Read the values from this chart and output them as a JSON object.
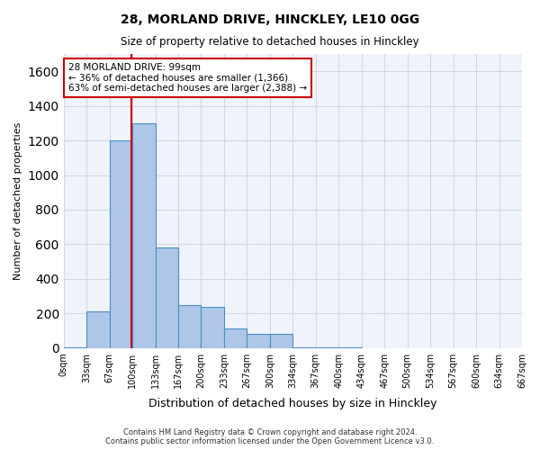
{
  "title1": "28, MORLAND DRIVE, HINCKLEY, LE10 0GG",
  "title2": "Size of property relative to detached houses in Hinckley",
  "xlabel": "Distribution of detached houses by size in Hinckley",
  "ylabel": "Number of detached properties",
  "footnote": "Contains HM Land Registry data © Crown copyright and database right 2024.\nContains public sector information licensed under the Open Government Licence v3.0.",
  "bin_width": 33.5,
  "bin_starts": [
    0,
    33.5,
    67,
    100.5,
    134,
    167.5,
    201,
    234.5,
    268,
    301.5,
    335,
    368.5,
    402,
    435.5,
    469,
    502.5,
    536,
    569.5,
    603,
    636.5
  ],
  "bin_counts": [
    5,
    210,
    1200,
    1300,
    580,
    250,
    235,
    115,
    80,
    80,
    5,
    5,
    5,
    0,
    0,
    0,
    0,
    0,
    0,
    0
  ],
  "tick_labels": [
    "0sqm",
    "33sqm",
    "67sqm",
    "100sqm",
    "133sqm",
    "167sqm",
    "200sqm",
    "233sqm",
    "267sqm",
    "300sqm",
    "334sqm",
    "367sqm",
    "400sqm",
    "434sqm",
    "467sqm",
    "500sqm",
    "534sqm",
    "567sqm",
    "600sqm",
    "634sqm",
    "667sqm"
  ],
  "tick_positions": [
    0,
    33.5,
    67,
    100.5,
    134,
    167.5,
    201,
    234.5,
    268,
    301.5,
    335,
    368.5,
    402,
    435.5,
    469,
    502.5,
    536,
    569.5,
    603,
    636.5,
    670
  ],
  "bar_color": "#aec6e8",
  "bar_edge_color": "#4a90c4",
  "property_line_x": 99,
  "annotation_title": "28 MORLAND DRIVE: 99sqm",
  "annotation_line1": "← 36% of detached houses are smaller (1,366)",
  "annotation_line2": "63% of semi-detached houses are larger (2,388) →",
  "annotation_box_color": "#ffffff",
  "annotation_box_edge": "#cc0000",
  "property_line_color": "#cc0000",
  "ylim": [
    0,
    1700
  ],
  "xlim": [
    0,
    670
  ],
  "yticks": [
    0,
    200,
    400,
    600,
    800,
    1000,
    1200,
    1400,
    1600
  ],
  "grid_color": "#d0d8e8",
  "background_color": "#f0f4fa"
}
